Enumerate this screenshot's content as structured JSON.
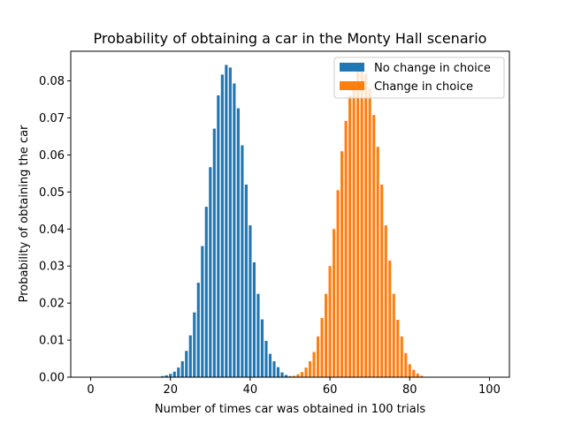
{
  "chart_data": {
    "type": "bar",
    "title": "Probability of obtaining a car in the Monty Hall scenario",
    "xlabel": "Number of times car was obtained in 100 trials",
    "ylabel": "Probability of obtaining the car",
    "xlim": [
      -5,
      105
    ],
    "ylim": [
      0,
      0.088
    ],
    "xticks": [
      0,
      20,
      40,
      60,
      80,
      100
    ],
    "yticks": [
      0.0,
      0.01,
      0.02,
      0.03,
      0.04,
      0.05,
      0.06,
      0.07,
      0.08
    ],
    "ytick_labels": [
      "0.00",
      "0.01",
      "0.02",
      "0.03",
      "0.04",
      "0.05",
      "0.06",
      "0.07",
      "0.08"
    ],
    "legend": {
      "placement": "top-right"
    },
    "grid": false,
    "series": [
      {
        "name": "No change in choice",
        "color": "#1f77b4",
        "x": [
          18,
          19,
          20,
          21,
          22,
          23,
          24,
          25,
          26,
          27,
          28,
          29,
          30,
          31,
          32,
          33,
          34,
          35,
          36,
          37,
          38,
          39,
          40,
          41,
          42,
          43,
          44,
          45,
          46,
          47,
          48,
          49,
          50
        ],
        "values": [
          0.0003,
          0.0005,
          0.0009,
          0.0015,
          0.0026,
          0.0043,
          0.0071,
          0.0113,
          0.0175,
          0.0255,
          0.0354,
          0.046,
          0.0567,
          0.0671,
          0.0761,
          0.0817,
          0.0843,
          0.0836,
          0.0793,
          0.0726,
          0.0626,
          0.052,
          0.041,
          0.031,
          0.0225,
          0.0156,
          0.0098,
          0.0063,
          0.0043,
          0.0027,
          0.0013,
          0.0006,
          0.0003
        ]
      },
      {
        "name": "Change in choice",
        "color": "#ff7f0e",
        "x": [
          50,
          51,
          52,
          53,
          54,
          55,
          56,
          57,
          58,
          59,
          60,
          61,
          62,
          63,
          64,
          65,
          66,
          67,
          68,
          69,
          70,
          71,
          72,
          73,
          74,
          75,
          76,
          77,
          78,
          79,
          80,
          81,
          82,
          83
        ],
        "values": [
          0.0002,
          0.0004,
          0.0008,
          0.0014,
          0.0026,
          0.0043,
          0.0068,
          0.011,
          0.016,
          0.0225,
          0.03,
          0.04,
          0.0505,
          0.061,
          0.0692,
          0.076,
          0.0795,
          0.083,
          0.084,
          0.0818,
          0.078,
          0.0708,
          0.0622,
          0.052,
          0.041,
          0.0315,
          0.0225,
          0.0155,
          0.011,
          0.0065,
          0.0035,
          0.002,
          0.001,
          0.0004
        ]
      }
    ]
  }
}
